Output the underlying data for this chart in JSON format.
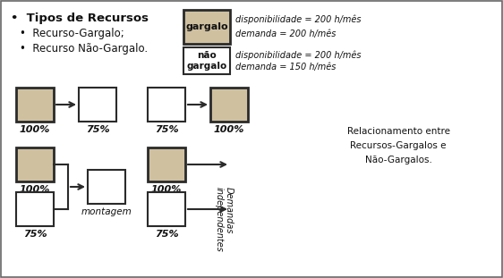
{
  "bg_color": "#ffffff",
  "border_color": "#2a2a2a",
  "gargalo_fill": "#cfc0a0",
  "nao_gargalo_fill": "#ffffff",
  "title_text": "•  Tipos de Recursos",
  "bullet1": "•  Recurso-Gargalo;",
  "bullet2": "•  Recurso Não-Gargalo.",
  "legend_gargalo_label": "gargalo",
  "legend_gargalo_line1": "disponibilidade = 200 h/mês",
  "legend_gargalo_line2": "demanda = 200 h/mês",
  "legend_nao_label": "não\ngargalo",
  "legend_nao_line1": "disponibilidade = 200 h/mês",
  "legend_nao_line2": "demanda = 150 h/mês",
  "rel_text": "Relacionamento entre\nRecursos-Gargalos e\nNão-Gargalos.",
  "montagem_text": "montagem",
  "demandas_text": "Demandas\nindependentes",
  "pct_100": "100%",
  "pct_75": "75%"
}
